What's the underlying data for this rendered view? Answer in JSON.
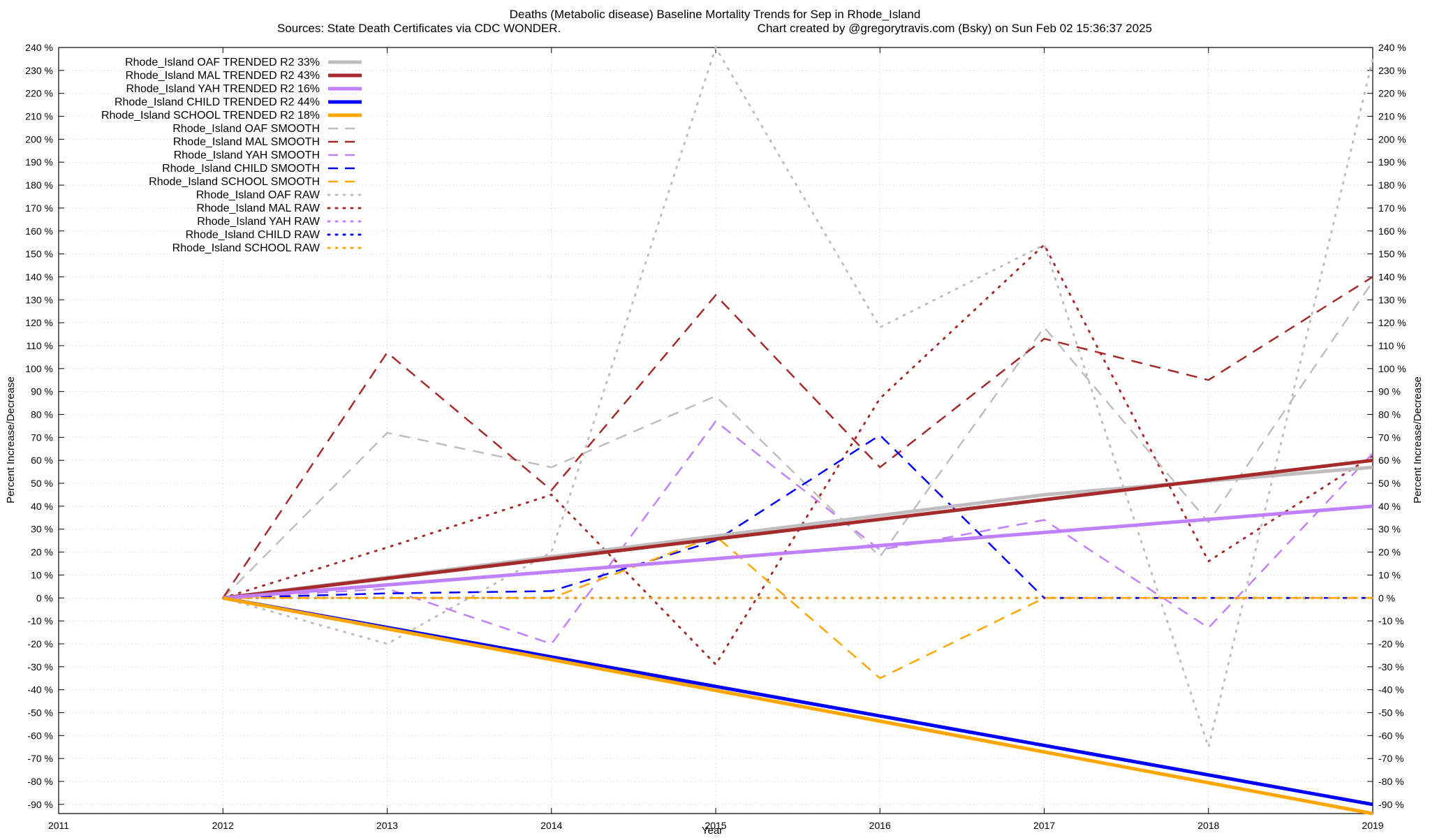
{
  "chart_data": {
    "type": "line",
    "title_line1": "Deaths (Metabolic disease)  Baseline Mortality Trends for Sep in Rhode_Island",
    "title_line2_left": "Sources: State Death Certificates via CDC WONDER.",
    "title_line2_right": "Chart created by @gregorytravis.com (Bsky) on Sun Feb 02 15:36:37 2025",
    "xlabel": "Year",
    "ylabel": "Percent Increase/Decrease",
    "ylabel_right": "Percent Increase/Decrease",
    "xlim": [
      2011,
      2019
    ],
    "ylim": [
      -94,
      240
    ],
    "x_ticks": [
      2011,
      2012,
      2013,
      2014,
      2015,
      2016,
      2017,
      2018,
      2019
    ],
    "y_ticks": [
      240,
      230,
      220,
      210,
      200,
      190,
      180,
      170,
      160,
      150,
      140,
      130,
      120,
      110,
      100,
      90,
      80,
      70,
      60,
      50,
      40,
      30,
      20,
      10,
      0,
      -10,
      -20,
      -30,
      -40,
      -50,
      -60,
      -70,
      -80,
      -90
    ],
    "y_tick_suffix": " %",
    "grid": true,
    "legend_position": "top-left",
    "series": [
      {
        "name": "Rhode_Island OAF TRENDED R2  33%",
        "style": "solid",
        "color": "#c0bcc0",
        "x": [
          2012,
          2017,
          2019
        ],
        "y": [
          0,
          45,
          57
        ]
      },
      {
        "name": "Rhode_Island MAL TRENDED R2  43%",
        "style": "solid",
        "color": "#a52a2a",
        "x": [
          2012,
          2019
        ],
        "y": [
          0,
          60
        ]
      },
      {
        "name": "Rhode_Island YAH TRENDED R2  16%",
        "style": "solid",
        "color": "#c080ff",
        "x": [
          2012,
          2019
        ],
        "y": [
          0,
          40
        ]
      },
      {
        "name": "Rhode_Island CHILD TRENDED R2  44%",
        "style": "solid",
        "color": "#0000ff",
        "x": [
          2012,
          2019
        ],
        "y": [
          0,
          -90
        ]
      },
      {
        "name": "Rhode_Island SCHOOL TRENDED R2  18%",
        "style": "solid",
        "color": "#ffa500",
        "x": [
          2012,
          2019
        ],
        "y": [
          0,
          -94
        ]
      },
      {
        "name": "Rhode_Island OAF SMOOTH",
        "style": "dashed",
        "color": "#c0bcc0",
        "x": [
          2012,
          2013,
          2014,
          2015,
          2016,
          2017,
          2018,
          2019
        ],
        "y": [
          0,
          72,
          57,
          88,
          18,
          118,
          33,
          138
        ]
      },
      {
        "name": "Rhode_Island MAL SMOOTH",
        "style": "dashed",
        "color": "#a52a2a",
        "x": [
          2012,
          2013,
          2014,
          2015,
          2016,
          2017,
          2018,
          2019
        ],
        "y": [
          0,
          107,
          47,
          132,
          57,
          113,
          95,
          140
        ]
      },
      {
        "name": "Rhode_Island YAH SMOOTH",
        "style": "dashed",
        "color": "#c080ff",
        "x": [
          2012,
          2013,
          2014,
          2015,
          2016,
          2017,
          2018,
          2019
        ],
        "y": [
          0,
          4,
          -20,
          77,
          21,
          34,
          -13,
          63
        ]
      },
      {
        "name": "Rhode_Island CHILD SMOOTH",
        "style": "dashed",
        "color": "#0000ff",
        "x": [
          2012,
          2013,
          2014,
          2015,
          2016,
          2017,
          2018,
          2019
        ],
        "y": [
          0,
          2,
          3,
          25,
          71,
          0,
          0,
          0
        ]
      },
      {
        "name": "Rhode_Island SCHOOL SMOOTH",
        "style": "dashed",
        "color": "#ffa500",
        "x": [
          2012,
          2013,
          2014,
          2015,
          2016,
          2017,
          2018,
          2019
        ],
        "y": [
          0,
          0,
          0,
          27,
          -35,
          0,
          0,
          0
        ]
      },
      {
        "name": "Rhode_Island OAF RAW",
        "style": "dotted",
        "color": "#c0bcc0",
        "x": [
          2012,
          2013,
          2014,
          2015,
          2016,
          2017,
          2018,
          2019
        ],
        "y": [
          0,
          -20,
          20,
          240,
          118,
          154,
          -65,
          235
        ]
      },
      {
        "name": "Rhode_Island MAL RAW",
        "style": "dotted",
        "color": "#a52a2a",
        "x": [
          2012,
          2013,
          2014,
          2015,
          2016,
          2017,
          2018,
          2019
        ],
        "y": [
          0,
          22,
          45,
          -29,
          87,
          154,
          16,
          62
        ]
      },
      {
        "name": "Rhode_Island YAH RAW",
        "style": "dotted",
        "color": "#c080ff",
        "x": [
          2012,
          2013,
          2014,
          2015,
          2016,
          2017,
          2018,
          2019
        ],
        "y": [
          0,
          0,
          0,
          0,
          0,
          0,
          0,
          0
        ]
      },
      {
        "name": "Rhode_Island CHILD RAW",
        "style": "dotted",
        "color": "#0000ff",
        "x": [
          2012,
          2013,
          2014,
          2015,
          2016,
          2017,
          2018,
          2019
        ],
        "y": [
          0,
          0,
          0,
          0,
          0,
          0,
          0,
          0
        ]
      },
      {
        "name": "Rhode_Island SCHOOL RAW",
        "style": "dotted",
        "color": "#ffa500",
        "x": [
          2012,
          2013,
          2014,
          2015,
          2016,
          2017,
          2018,
          2019
        ],
        "y": [
          0,
          0,
          0,
          0,
          0,
          0,
          0,
          0
        ]
      }
    ]
  }
}
